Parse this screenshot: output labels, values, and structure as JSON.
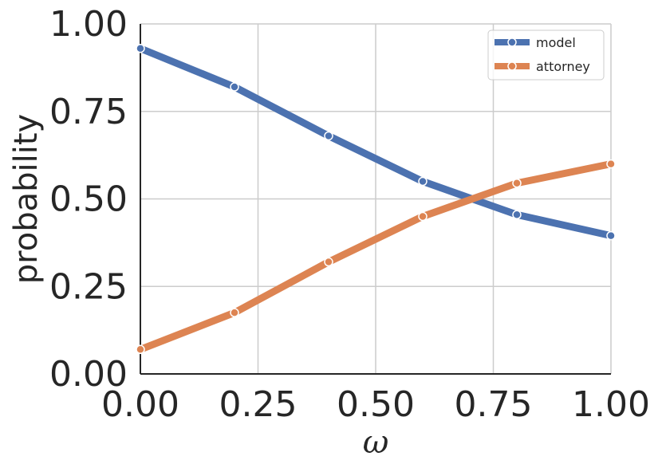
{
  "chart_data": {
    "type": "line",
    "xlabel": "ω",
    "ylabel": "probability",
    "xlim": [
      0,
      1
    ],
    "ylim": [
      0,
      1
    ],
    "x_ticks": [
      "0.00",
      "0.25",
      "0.50",
      "0.75",
      "1.00"
    ],
    "y_ticks": [
      "0.00",
      "0.25",
      "0.50",
      "0.75",
      "1.00"
    ],
    "grid": true,
    "legend_position": "top-right",
    "x": [
      0.0,
      0.2,
      0.4,
      0.6,
      0.8,
      1.0
    ],
    "series": [
      {
        "name": "model",
        "color": "#4c72b0",
        "values": [
          0.93,
          0.82,
          0.68,
          0.55,
          0.455,
          0.395
        ]
      },
      {
        "name": "attorney",
        "color": "#dd8452",
        "values": [
          0.07,
          0.175,
          0.32,
          0.45,
          0.545,
          0.6
        ]
      }
    ]
  }
}
